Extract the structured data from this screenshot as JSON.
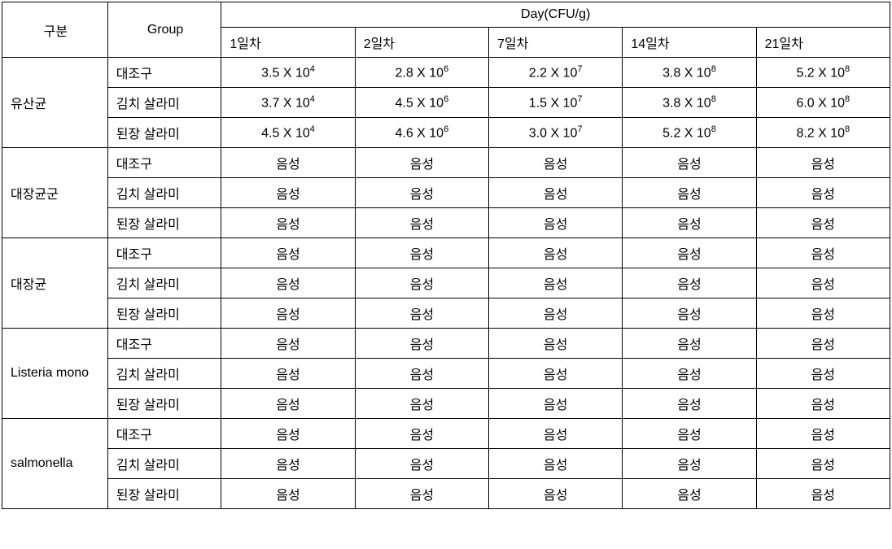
{
  "table": {
    "headers": {
      "category": "구분",
      "group": "Group",
      "day_header": "Day(CFU/g)",
      "days": [
        "1일차",
        "2일차",
        "7일차",
        "14일차",
        "21일차"
      ]
    },
    "groups": [
      "대조구",
      "김치 살라미",
      "된장 살라미"
    ],
    "categories": [
      {
        "name": "유산균",
        "rows": [
          {
            "group": "대조구",
            "values": [
              "3.5 X 10⁴",
              "2.8 X 10⁶",
              "2.2 X 10⁷",
              "3.8 X 10⁸",
              "5.2 X 10⁸"
            ]
          },
          {
            "group": "김치 살라미",
            "values": [
              "3.7 X 10⁴",
              "4.5 X 10⁶",
              "1.5 X 10⁷",
              "3.8 X 10⁸",
              "6.0 X 10⁸"
            ]
          },
          {
            "group": "된장 살라미",
            "values": [
              "4.5 X 10⁴",
              "4.6 X 10⁶",
              "3.0 X 10⁷",
              "5.2 X 10⁸",
              "8.2 X 10⁸"
            ]
          }
        ]
      },
      {
        "name": "대장균군",
        "rows": [
          {
            "group": "대조구",
            "values": [
              "음성",
              "음성",
              "음성",
              "음성",
              "음성"
            ]
          },
          {
            "group": "김치 살라미",
            "values": [
              "음성",
              "음성",
              "음성",
              "음성",
              "음성"
            ]
          },
          {
            "group": "된장 살라미",
            "values": [
              "음성",
              "음성",
              "음성",
              "음성",
              "음성"
            ]
          }
        ]
      },
      {
        "name": "대장균",
        "rows": [
          {
            "group": "대조구",
            "values": [
              "음성",
              "음성",
              "음성",
              "음성",
              "음성"
            ]
          },
          {
            "group": "김치 살라미",
            "values": [
              "음성",
              "음성",
              "음성",
              "음성",
              "음성"
            ]
          },
          {
            "group": "된장 살라미",
            "values": [
              "음성",
              "음성",
              "음성",
              "음성",
              "음성"
            ]
          }
        ]
      },
      {
        "name": "Listeria mono",
        "rows": [
          {
            "group": "대조구",
            "values": [
              "음성",
              "음성",
              "음성",
              "음성",
              "음성"
            ]
          },
          {
            "group": "김치 살라미",
            "values": [
              "음성",
              "음성",
              "음성",
              "음성",
              "음성"
            ]
          },
          {
            "group": "된장 살라미",
            "values": [
              "음성",
              "음성",
              "음성",
              "음성",
              "음성"
            ]
          }
        ]
      },
      {
        "name": "salmonella",
        "rows": [
          {
            "group": "대조구",
            "values": [
              "음성",
              "음성",
              "음성",
              "음성",
              "음성"
            ]
          },
          {
            "group": "김치 살라미",
            "values": [
              "음성",
              "음성",
              "음성",
              "음성",
              "음성"
            ]
          },
          {
            "group": "된장 살라미",
            "values": [
              "음성",
              "음성",
              "음성",
              "음성",
              "음성"
            ]
          }
        ]
      }
    ],
    "styling": {
      "border_color": "#000000",
      "background_color": "#ffffff",
      "text_color": "#000000",
      "font_size": 16,
      "font_family": "Malgun Gothic",
      "col_widths": {
        "category": 130,
        "group": 140,
        "day": 165
      },
      "total_width": 1092,
      "cell_padding": "6px 8px"
    }
  }
}
